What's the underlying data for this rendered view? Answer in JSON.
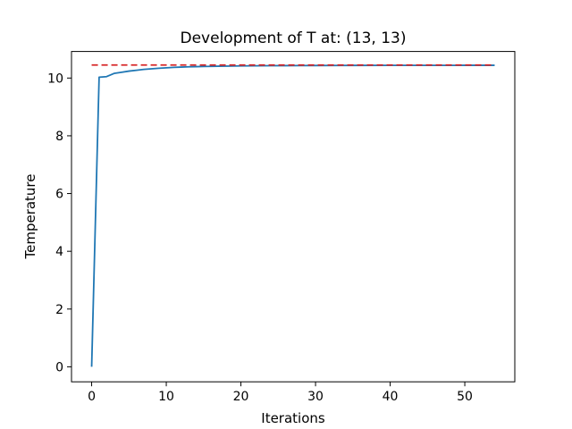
{
  "chart_data": {
    "type": "line",
    "title": "Development of T at: (13, 13)",
    "xlabel": "Iterations",
    "ylabel": "Temperature",
    "xlim": [
      -2.7,
      56.7
    ],
    "ylim": [
      -0.52,
      10.92
    ],
    "xticks": [
      0,
      10,
      20,
      30,
      40,
      50
    ],
    "yticks": [
      0,
      2,
      4,
      6,
      8,
      10
    ],
    "grid": false,
    "series": [
      {
        "color": "#1f77b4",
        "style": "solid",
        "x": [
          0,
          1,
          2,
          3,
          4,
          5,
          6,
          7,
          8,
          9,
          10,
          11,
          12,
          13,
          14,
          15,
          16,
          17,
          18,
          19,
          20,
          22,
          24,
          26,
          28,
          30,
          35,
          40,
          45,
          50,
          54
        ],
        "y": [
          0,
          10.03,
          10.05,
          10.16,
          10.2,
          10.24,
          10.27,
          10.3,
          10.32,
          10.34,
          10.355,
          10.37,
          10.38,
          10.39,
          10.395,
          10.4,
          10.405,
          10.41,
          10.413,
          10.416,
          10.42,
          10.424,
          10.427,
          10.43,
          10.432,
          10.434,
          10.437,
          10.439,
          10.44,
          10.441,
          10.442
        ]
      },
      {
        "color": "#d62728",
        "style": "dashed",
        "x": [
          0,
          54
        ],
        "y": [
          10.45,
          10.45
        ]
      }
    ]
  }
}
